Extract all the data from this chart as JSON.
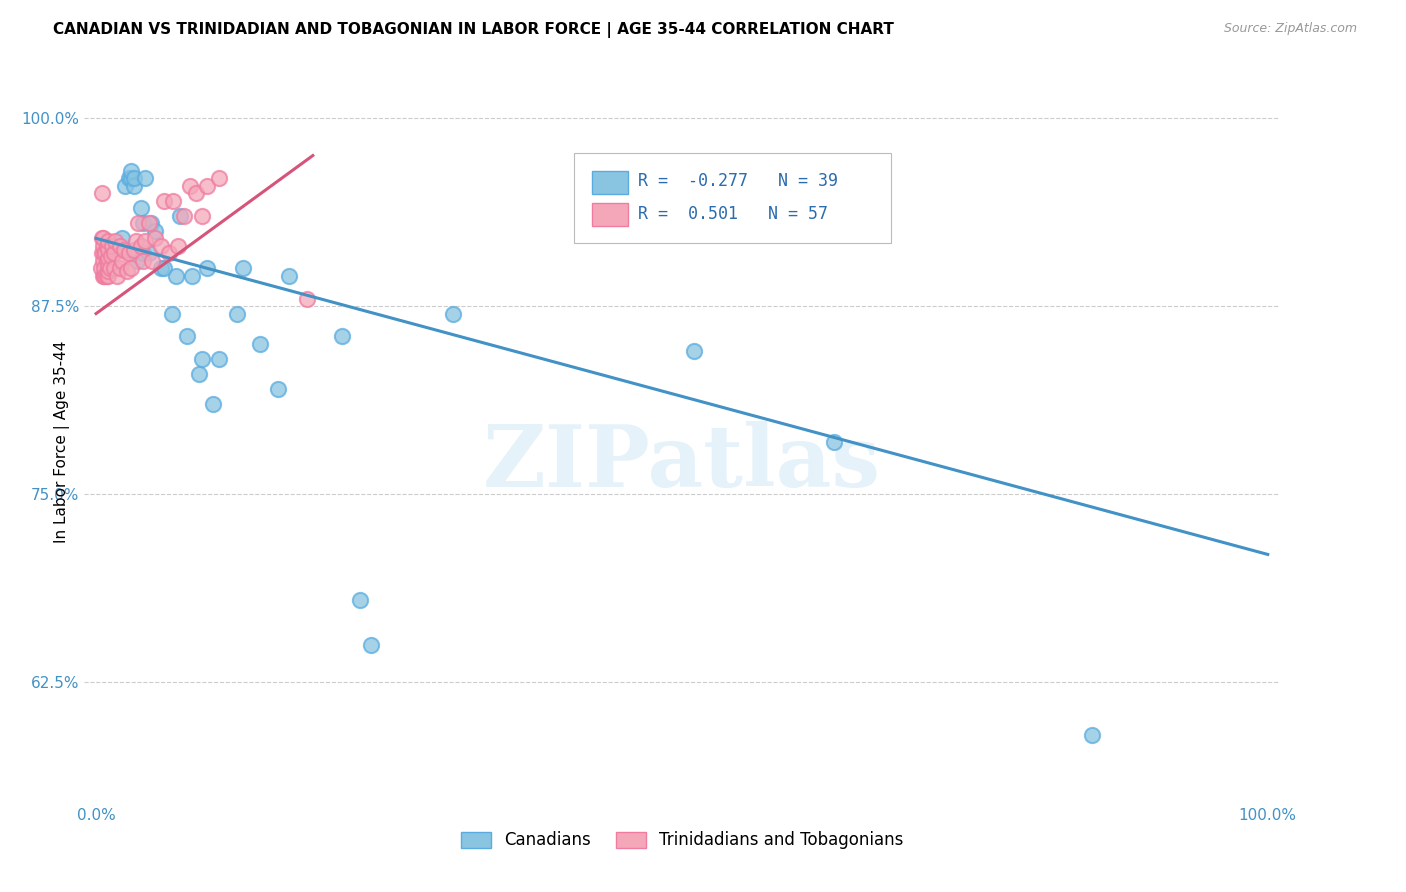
{
  "title": "CANADIAN VS TRINIDADIAN AND TOBAGONIAN IN LABOR FORCE | AGE 35-44 CORRELATION CHART",
  "source": "Source: ZipAtlas.com",
  "ylabel": "In Labor Force | Age 35-44",
  "watermark": "ZIPatlas",
  "xlim": [
    -0.01,
    1.01
  ],
  "ylim": [
    0.545,
    1.025
  ],
  "yticks": [
    0.625,
    0.75,
    0.875,
    1.0
  ],
  "ytick_labels": [
    "62.5%",
    "75.0%",
    "87.5%",
    "100.0%"
  ],
  "xticks": [
    0.0,
    0.25,
    0.5,
    0.75,
    1.0
  ],
  "xtick_labels": [
    "0.0%",
    "",
    "",
    "",
    "100.0%"
  ],
  "blue_R": -0.277,
  "blue_N": 39,
  "pink_R": 0.501,
  "pink_N": 57,
  "blue_color": "#89c4e1",
  "pink_color": "#f4a7b9",
  "blue_edge_color": "#5aace0",
  "pink_edge_color": "#f07ca0",
  "blue_line_color": "#4292c6",
  "pink_line_color": "#d6547a",
  "legend_blue_label": "Canadians",
  "legend_pink_label": "Trinidadians and Tobagonians",
  "blue_points_x": [
    0.022,
    0.025,
    0.028,
    0.03,
    0.03,
    0.032,
    0.032,
    0.035,
    0.038,
    0.04,
    0.04,
    0.042,
    0.045,
    0.047,
    0.05,
    0.055,
    0.058,
    0.065,
    0.068,
    0.072,
    0.078,
    0.082,
    0.088,
    0.09,
    0.095,
    0.1,
    0.105,
    0.12,
    0.125,
    0.14,
    0.155,
    0.165,
    0.21,
    0.225,
    0.235,
    0.305,
    0.51,
    0.63,
    0.85
  ],
  "blue_points_y": [
    0.92,
    0.955,
    0.96,
    0.96,
    0.965,
    0.955,
    0.96,
    0.905,
    0.94,
    0.91,
    0.93,
    0.96,
    0.91,
    0.93,
    0.925,
    0.9,
    0.9,
    0.87,
    0.895,
    0.935,
    0.855,
    0.895,
    0.83,
    0.84,
    0.9,
    0.81,
    0.84,
    0.87,
    0.9,
    0.85,
    0.82,
    0.895,
    0.855,
    0.68,
    0.65,
    0.87,
    0.845,
    0.785,
    0.59
  ],
  "pink_points_x": [
    0.004,
    0.005,
    0.005,
    0.005,
    0.006,
    0.006,
    0.006,
    0.006,
    0.007,
    0.007,
    0.007,
    0.008,
    0.008,
    0.009,
    0.009,
    0.009,
    0.01,
    0.01,
    0.01,
    0.01,
    0.01,
    0.01,
    0.012,
    0.013,
    0.014,
    0.015,
    0.015,
    0.016,
    0.018,
    0.02,
    0.02,
    0.022,
    0.024,
    0.026,
    0.028,
    0.03,
    0.032,
    0.034,
    0.036,
    0.038,
    0.04,
    0.042,
    0.045,
    0.048,
    0.05,
    0.055,
    0.058,
    0.062,
    0.066,
    0.07,
    0.075,
    0.08,
    0.085,
    0.09,
    0.095,
    0.105,
    0.18
  ],
  "pink_points_y": [
    0.9,
    0.91,
    0.92,
    0.95,
    0.895,
    0.905,
    0.915,
    0.92,
    0.895,
    0.9,
    0.91,
    0.895,
    0.91,
    0.895,
    0.905,
    0.915,
    0.895,
    0.898,
    0.902,
    0.907,
    0.912,
    0.918,
    0.9,
    0.908,
    0.915,
    0.9,
    0.91,
    0.918,
    0.895,
    0.9,
    0.915,
    0.905,
    0.912,
    0.898,
    0.91,
    0.9,
    0.912,
    0.918,
    0.93,
    0.915,
    0.905,
    0.918,
    0.93,
    0.905,
    0.92,
    0.915,
    0.945,
    0.91,
    0.945,
    0.915,
    0.935,
    0.955,
    0.95,
    0.935,
    0.955,
    0.96,
    0.88
  ],
  "blue_line_x0": 0.0,
  "blue_line_x1": 1.0,
  "blue_line_y0": 0.92,
  "blue_line_y1": 0.71,
  "pink_line_x0": 0.0,
  "pink_line_x1": 0.185,
  "pink_line_y0": 0.87,
  "pink_line_y1": 0.975
}
